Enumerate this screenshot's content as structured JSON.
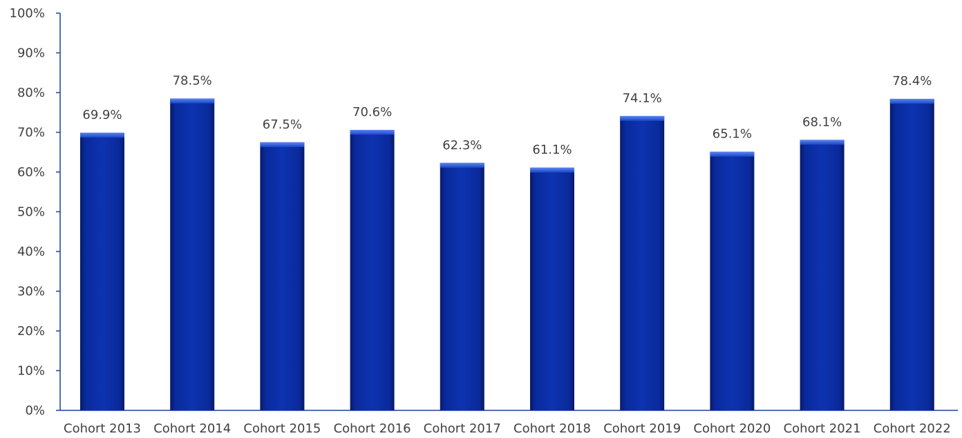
{
  "chart_data": {
    "type": "bar",
    "title": "",
    "xlabel": "",
    "ylabel": "",
    "categories": [
      "Cohort 2013",
      "Cohort 2014",
      "Cohort 2015",
      "Cohort 2016",
      "Cohort 2017",
      "Cohort 2018",
      "Cohort 2019",
      "Cohort 2020",
      "Cohort 2021",
      "Cohort 2022"
    ],
    "values": [
      69.9,
      78.5,
      67.5,
      70.6,
      62.3,
      61.1,
      74.1,
      65.1,
      68.1,
      78.4
    ],
    "data_labels": [
      "69.9%",
      "78.5%",
      "67.5%",
      "70.6%",
      "62.3%",
      "61.1%",
      "74.1%",
      "65.1%",
      "68.1%",
      "78.4%"
    ],
    "yticks": [
      0,
      10,
      20,
      30,
      40,
      50,
      60,
      70,
      80,
      90,
      100
    ],
    "ytick_labels": [
      "0%",
      "10%",
      "20%",
      "30%",
      "40%",
      "50%",
      "60%",
      "70%",
      "80%",
      "90%",
      "100%"
    ],
    "ylim": [
      0,
      100
    ],
    "grid": false,
    "legend": "none",
    "colors": {
      "bar": "#0A2A9C",
      "bar_light": "#3D6BE8",
      "bar_dark": "#061A6B",
      "axis": "#1F3FA0",
      "text": "#404040"
    }
  }
}
